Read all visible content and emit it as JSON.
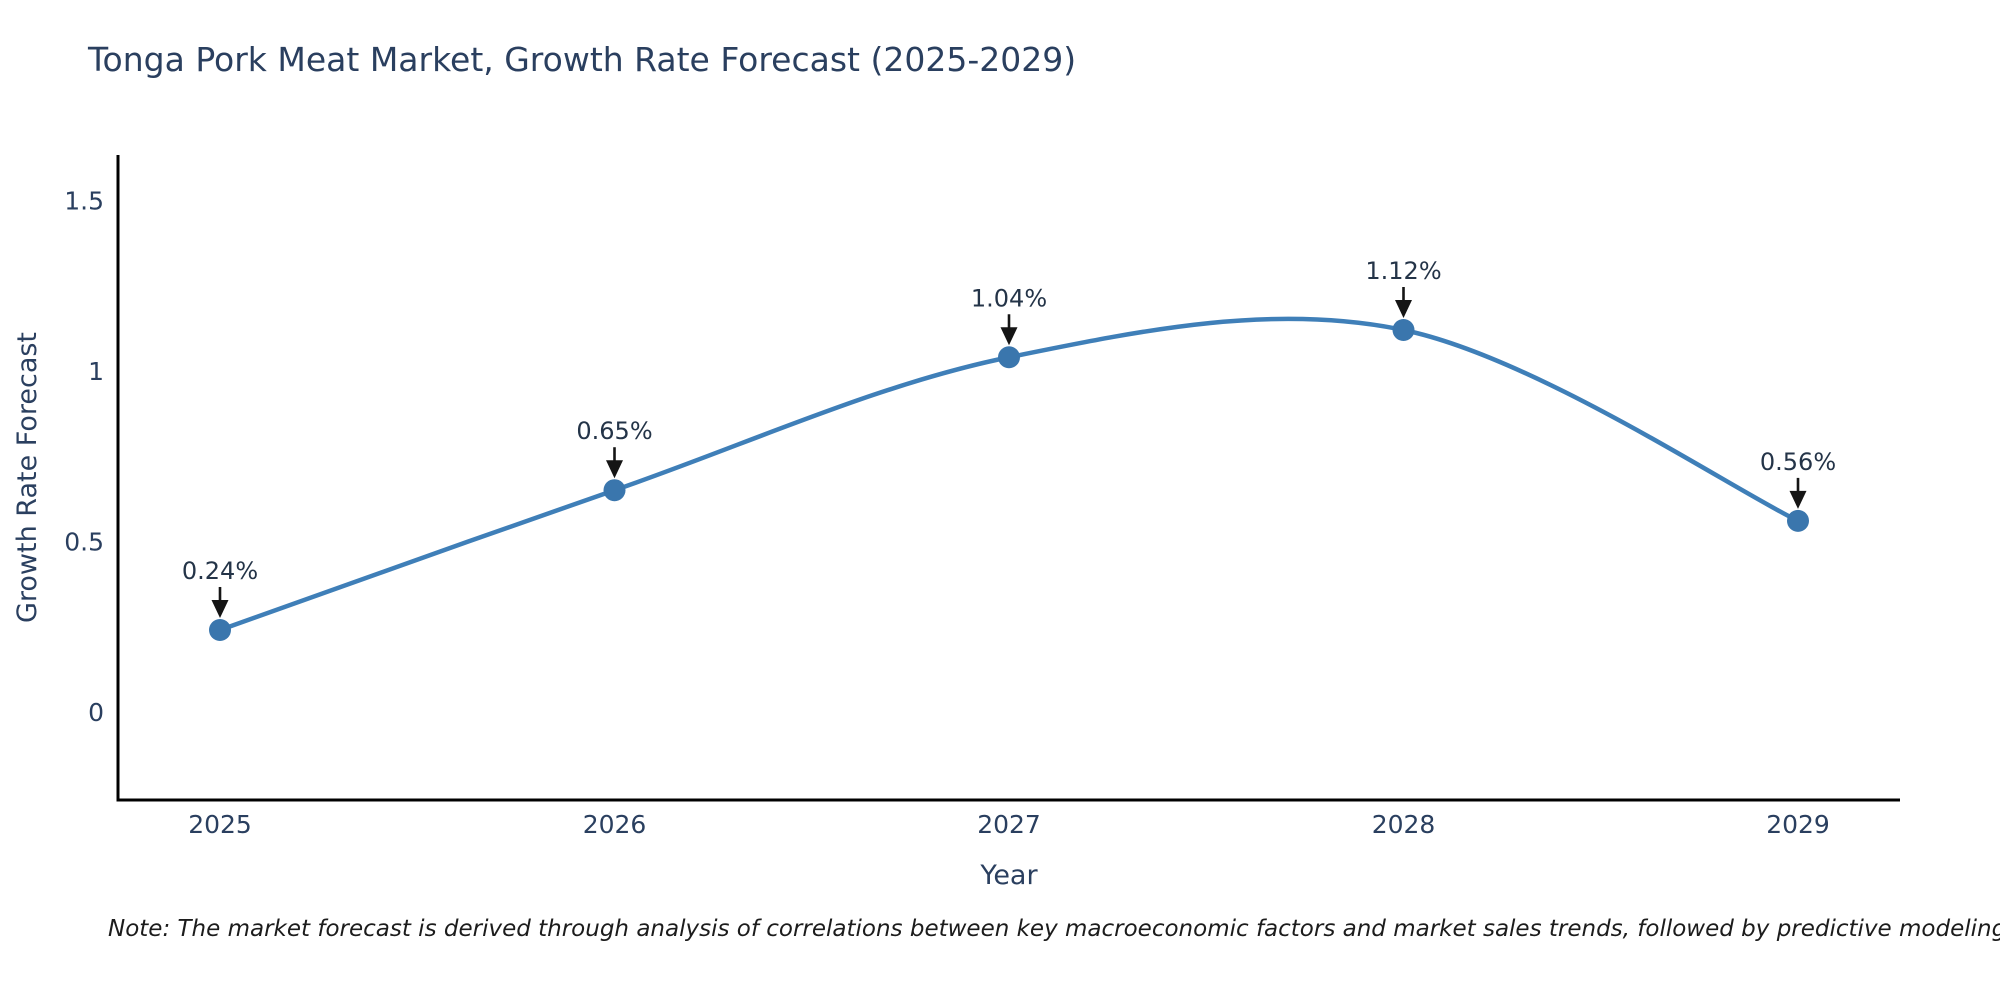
{
  "title": "Tonga Pork Meat Market, Growth Rate Forecast (2025-2029)",
  "note": "Note: The market forecast is derived through analysis of correlations between key macroeconomic factors and market sales trends, followed by predictive modeling to project future sales",
  "chart_data": {
    "type": "line",
    "line_shape": "spline",
    "title": "Tonga Pork Meat Market, Growth Rate Forecast (2025-2029)",
    "xlabel": "Year",
    "ylabel": "Growth Rate Forecast",
    "x": [
      2025,
      2026,
      2027,
      2028,
      2029
    ],
    "y": [
      0.24,
      0.65,
      1.04,
      1.12,
      0.56
    ],
    "point_labels": [
      "0.24%",
      "0.65%",
      "1.04%",
      "1.12%",
      "0.56%"
    ],
    "xtick_labels": [
      "2025",
      "2026",
      "2027",
      "2028",
      "2029"
    ],
    "ytick_values": [
      0,
      0.5,
      1,
      1.5
    ],
    "ytick_labels": [
      "0",
      "0.5",
      "1",
      "1.5"
    ],
    "xlim": [
      2024.74,
      2029.26
    ],
    "ylim": [
      -0.26,
      1.62
    ],
    "grid": false,
    "legend": "none",
    "markers": true,
    "colors": {
      "line": "#3f7fb8",
      "marker": "#3a76ad",
      "axis": "#000000",
      "text": "#2a3f5f",
      "annotation_text": "#243448",
      "annotation_arrow": "#151515",
      "background": "#ffffff"
    }
  }
}
